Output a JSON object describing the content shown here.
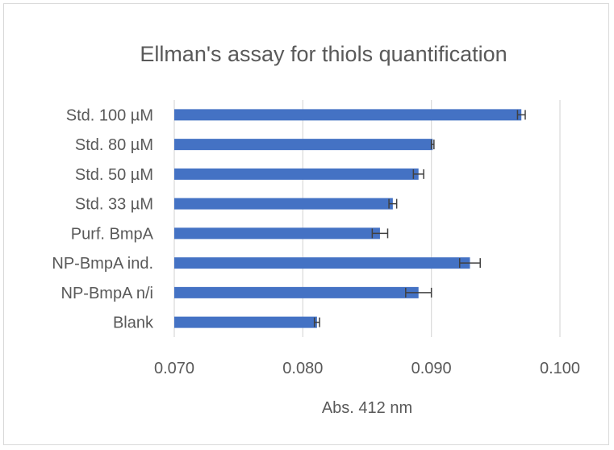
{
  "chart_data": {
    "type": "bar",
    "orientation": "horizontal",
    "title": "Ellman's assay for thiols quantification",
    "xlabel": "Abs. 412 nm",
    "ylabel": "",
    "xlim": [
      0.07,
      0.1
    ],
    "x_ticks": [
      "0.070",
      "0.080",
      "0.090",
      "0.100"
    ],
    "grid": true,
    "color": "#4472c4",
    "categories": [
      "Std. 100 µM",
      "Std. 80 µM",
      "Std. 50 µM",
      "Std. 33 µM",
      "Purf. BmpA",
      "NP-BmpA ind.",
      "NP-BmpA n/i",
      "Blank"
    ],
    "values": [
      0.097,
      0.0901,
      0.089,
      0.087,
      0.086,
      0.093,
      0.089,
      0.0811
    ],
    "errors": [
      0.0003,
      0.0001,
      0.0004,
      0.0003,
      0.0006,
      0.0008,
      0.001,
      0.0002
    ]
  }
}
